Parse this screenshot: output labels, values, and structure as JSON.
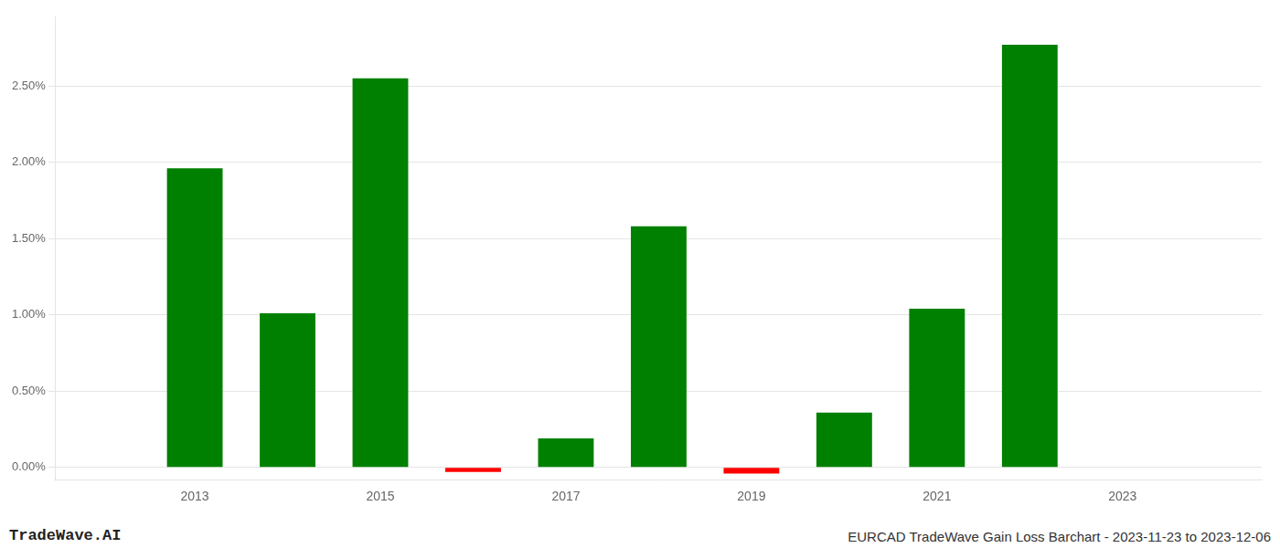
{
  "chart_data": {
    "type": "bar",
    "title": "EURCAD TradeWave Gain Loss Barchart - 2023-11-23 to 2023-12-06",
    "annotations": [
      "TradeWave.AI"
    ],
    "x": [
      2013,
      2014,
      2015,
      2016,
      2017,
      2018,
      2019,
      2020,
      2021,
      2022,
      2023
    ],
    "values": [
      0.0196,
      0.0101,
      0.0255,
      -0.0003,
      0.0019,
      0.0158,
      -0.0004,
      0.0036,
      0.0104,
      0.0277,
      0.0
    ],
    "colors": [
      "#008000",
      "#008000",
      "#008000",
      "#ff0000",
      "#008000",
      "#008000",
      "#ff0000",
      "#008000",
      "#008000",
      "#008000",
      "#008000"
    ],
    "xlim": [
      2011.5,
      2024.5
    ],
    "xticks": [
      2013,
      2015,
      2017,
      2019,
      2021,
      2023
    ],
    "ylim": [
      -0.0008,
      0.0295
    ],
    "yticks": [
      {
        "value": 0.0,
        "label": "0.00%"
      },
      {
        "value": 0.005,
        "label": "0.50%"
      },
      {
        "value": 0.01,
        "label": "1.00%"
      },
      {
        "value": 0.015,
        "label": "1.50%"
      },
      {
        "value": 0.02,
        "label": "2.00%"
      },
      {
        "value": 0.025,
        "label": "2.50%"
      }
    ],
    "grid": true
  }
}
